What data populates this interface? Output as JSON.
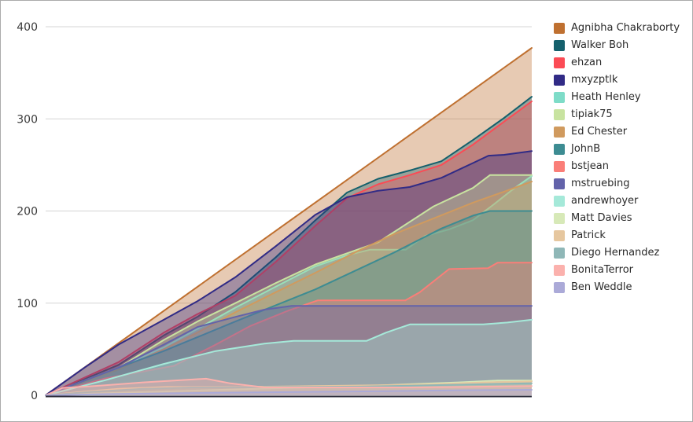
{
  "chart_data": {
    "type": "area",
    "title": "",
    "xlabel": "",
    "ylabel": "",
    "ylim": [
      0,
      400
    ],
    "yticks": [
      0,
      100,
      200,
      300,
      400
    ],
    "x_tick_labels": "none",
    "grid": "horizontal",
    "grid_color": "#d4d4d4",
    "axis_line_color": "#2a2a38",
    "fill_opacity": 0.37,
    "legend_position": "right",
    "series": [
      {
        "name": "Agnibha Chakraborty",
        "color": "#bf7030",
        "final_value": 377,
        "points": [
          [
            0,
            0
          ],
          [
            1,
            377
          ]
        ]
      },
      {
        "name": "Walker Boh",
        "color": "#14606c",
        "final_value": 324,
        "points": [
          [
            0,
            0
          ],
          [
            0.15,
            33
          ],
          [
            0.243,
            65
          ],
          [
            0.312,
            85
          ],
          [
            0.39,
            112
          ],
          [
            0.474,
            150
          ],
          [
            0.555,
            190
          ],
          [
            0.62,
            220
          ],
          [
            0.684,
            235
          ],
          [
            0.749,
            244
          ],
          [
            0.814,
            254
          ],
          [
            0.879,
            277
          ],
          [
            0.943,
            301
          ],
          [
            1,
            324
          ]
        ]
      },
      {
        "name": "ehzan",
        "color": "#fb4b55",
        "final_value": 319,
        "points": [
          [
            0,
            0
          ],
          [
            0.15,
            36
          ],
          [
            0.243,
            68
          ],
          [
            0.312,
            88
          ],
          [
            0.39,
            108
          ],
          [
            0.474,
            145
          ],
          [
            0.555,
            184
          ],
          [
            0.62,
            214
          ],
          [
            0.684,
            229
          ],
          [
            0.749,
            239
          ],
          [
            0.814,
            250
          ],
          [
            0.879,
            272
          ],
          [
            0.943,
            297
          ],
          [
            1,
            319
          ]
        ]
      },
      {
        "name": "mxyzptlk",
        "color": "#312b86",
        "final_value": 265,
        "points": [
          [
            0,
            0
          ],
          [
            0.08,
            30
          ],
          [
            0.15,
            55
          ],
          [
            0.243,
            82
          ],
          [
            0.312,
            102
          ],
          [
            0.39,
            128
          ],
          [
            0.474,
            162
          ],
          [
            0.555,
            196
          ],
          [
            0.62,
            215
          ],
          [
            0.684,
            222
          ],
          [
            0.749,
            226
          ],
          [
            0.814,
            236
          ],
          [
            0.879,
            252
          ],
          [
            0.911,
            260
          ],
          [
            0.943,
            261
          ],
          [
            1,
            265
          ]
        ]
      },
      {
        "name": "Heath Henley",
        "color": "#7edcc8",
        "final_value": 238,
        "points": [
          [
            0,
            0
          ],
          [
            0.15,
            30
          ],
          [
            0.243,
            52
          ],
          [
            0.312,
            72
          ],
          [
            0.39,
            95
          ],
          [
            0.474,
            118
          ],
          [
            0.555,
            140
          ],
          [
            0.62,
            152
          ],
          [
            0.668,
            158
          ],
          [
            0.741,
            158
          ],
          [
            0.781,
            173
          ],
          [
            0.83,
            180
          ],
          [
            0.879,
            190
          ],
          [
            0.919,
            206
          ],
          [
            0.96,
            223
          ],
          [
            1,
            238
          ]
        ]
      },
      {
        "name": "tipiak75",
        "color": "#c8e3a0",
        "final_value": 239,
        "points": [
          [
            0,
            0
          ],
          [
            0.15,
            30
          ],
          [
            0.243,
            60
          ],
          [
            0.312,
            80
          ],
          [
            0.39,
            100
          ],
          [
            0.474,
            122
          ],
          [
            0.555,
            142
          ],
          [
            0.684,
            166
          ],
          [
            0.798,
            205
          ],
          [
            0.879,
            225
          ],
          [
            0.914,
            239
          ],
          [
            1,
            239
          ]
        ]
      },
      {
        "name": "Ed Chester",
        "color": "#d09a5e",
        "final_value": 232,
        "points": [
          [
            0,
            0
          ],
          [
            0.15,
            28
          ],
          [
            0.243,
            50
          ],
          [
            0.312,
            68
          ],
          [
            0.39,
            90
          ],
          [
            0.474,
            112
          ],
          [
            0.555,
            133
          ],
          [
            0.636,
            155
          ],
          [
            0.717,
            175
          ],
          [
            0.798,
            192
          ],
          [
            0.879,
            209
          ],
          [
            0.943,
            221
          ],
          [
            1,
            232
          ]
        ]
      },
      {
        "name": "JohnB",
        "color": "#3d8c92",
        "final_value": 200,
        "points": [
          [
            0,
            0
          ],
          [
            0.15,
            30
          ],
          [
            0.243,
            48
          ],
          [
            0.39,
            80
          ],
          [
            0.555,
            115
          ],
          [
            0.717,
            155
          ],
          [
            0.814,
            181
          ],
          [
            0.879,
            195
          ],
          [
            0.914,
            200
          ],
          [
            1,
            200
          ]
        ]
      },
      {
        "name": "bstjean",
        "color": "#fa7e78",
        "final_value": 144,
        "points": [
          [
            0,
            0
          ],
          [
            0.12,
            18
          ],
          [
            0.264,
            32
          ],
          [
            0.35,
            55
          ],
          [
            0.42,
            75
          ],
          [
            0.5,
            92
          ],
          [
            0.56,
            103
          ],
          [
            0.74,
            103
          ],
          [
            0.77,
            112
          ],
          [
            0.83,
            137
          ],
          [
            0.91,
            138
          ],
          [
            0.93,
            144
          ],
          [
            1,
            144
          ]
        ]
      },
      {
        "name": "mstruebing",
        "color": "#6363aa",
        "final_value": 97,
        "points": [
          [
            0,
            0
          ],
          [
            0.15,
            30
          ],
          [
            0.243,
            55
          ],
          [
            0.312,
            74
          ],
          [
            0.39,
            85
          ],
          [
            0.45,
            93
          ],
          [
            0.506,
            97
          ],
          [
            1,
            97
          ]
        ]
      },
      {
        "name": "andrewhoyer",
        "color": "#a5e9d9",
        "final_value": 82,
        "points": [
          [
            0,
            0
          ],
          [
            0.12,
            16
          ],
          [
            0.243,
            34
          ],
          [
            0.35,
            48
          ],
          [
            0.45,
            56
          ],
          [
            0.51,
            59
          ],
          [
            0.66,
            59
          ],
          [
            0.7,
            68
          ],
          [
            0.75,
            77
          ],
          [
            0.9,
            77
          ],
          [
            0.95,
            79
          ],
          [
            1,
            82
          ]
        ]
      },
      {
        "name": "Matt Davies",
        "color": "#d7e9b8",
        "final_value": 16,
        "points": [
          [
            0,
            0
          ],
          [
            0.1,
            2
          ],
          [
            0.3,
            5
          ],
          [
            0.5,
            8
          ],
          [
            0.65,
            10
          ],
          [
            0.75,
            12
          ],
          [
            0.85,
            14
          ],
          [
            0.93,
            16
          ],
          [
            1,
            16
          ]
        ]
      },
      {
        "name": "Patrick",
        "color": "#e6c79f",
        "final_value": 15,
        "points": [
          [
            0,
            0
          ],
          [
            0.08,
            4
          ],
          [
            0.15,
            7
          ],
          [
            0.25,
            9
          ],
          [
            0.4,
            9
          ],
          [
            0.55,
            10
          ],
          [
            0.7,
            11
          ],
          [
            0.8,
            12
          ],
          [
            0.9,
            14
          ],
          [
            1,
            15
          ]
        ]
      },
      {
        "name": "Diego Hernandez",
        "color": "#8fb7b7",
        "final_value": 13,
        "points": [
          [
            0,
            0
          ],
          [
            0.1,
            4
          ],
          [
            0.2,
            7
          ],
          [
            0.3,
            8.5
          ],
          [
            0.5,
            9
          ],
          [
            0.65,
            9.5
          ],
          [
            0.8,
            11
          ],
          [
            0.9,
            12
          ],
          [
            1,
            13
          ]
        ]
      },
      {
        "name": "BonitaTerror",
        "color": "#fbb1ad",
        "final_value": 10,
        "points": [
          [
            0,
            0
          ],
          [
            0.035,
            8
          ],
          [
            0.1,
            10
          ],
          [
            0.2,
            14
          ],
          [
            0.33,
            18
          ],
          [
            0.38,
            13
          ],
          [
            0.45,
            8.5
          ],
          [
            0.75,
            8.5
          ],
          [
            0.85,
            9
          ],
          [
            1,
            10
          ]
        ]
      },
      {
        "name": "Ben Weddle",
        "color": "#abaad8",
        "final_value": 6,
        "points": [
          [
            0,
            0
          ],
          [
            0.15,
            1.5
          ],
          [
            0.3,
            2.5
          ],
          [
            0.5,
            3.5
          ],
          [
            0.7,
            4.5
          ],
          [
            0.85,
            5.5
          ],
          [
            1,
            6
          ]
        ]
      }
    ]
  }
}
